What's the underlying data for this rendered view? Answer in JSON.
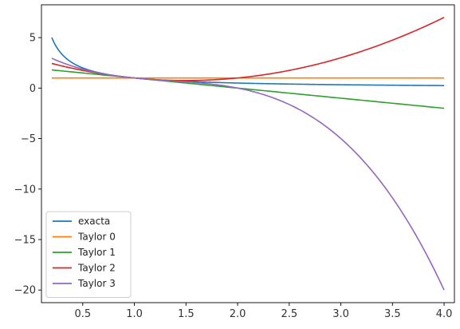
{
  "chart_data": {
    "type": "line",
    "title": "",
    "xlabel": "",
    "ylabel": "",
    "xlim": [
      0.1,
      4.1
    ],
    "ylim": [
      -21.25,
      8.25
    ],
    "grid": false,
    "legend_position": "lower-left",
    "x_ticks": [
      0.5,
      1.0,
      1.5,
      2.0,
      2.5,
      3.0,
      3.5,
      4.0
    ],
    "x_tick_labels": [
      "0.5",
      "1.0",
      "1.5",
      "2.0",
      "2.5",
      "3.0",
      "3.5",
      "4.0"
    ],
    "y_ticks": [
      5,
      0,
      -5,
      -10,
      -15,
      -20
    ],
    "y_tick_labels": [
      "5",
      "0",
      "−5",
      "−10",
      "−15",
      "−20"
    ],
    "x_range": [
      0.2,
      4.0
    ],
    "series": [
      {
        "name": "exacta",
        "color": "#1f77b4",
        "function": "1/x",
        "x": [
          0.2,
          0.3,
          0.5,
          0.75,
          1.0,
          1.5,
          2.0,
          2.5,
          3.0,
          3.5,
          4.0
        ],
        "y": [
          5.0,
          3.33,
          2.0,
          1.33,
          1.0,
          0.67,
          0.5,
          0.4,
          0.33,
          0.29,
          0.25
        ]
      },
      {
        "name": "Taylor 0",
        "color": "#ff7f0e",
        "function": "1",
        "x": [
          0.2,
          4.0
        ],
        "y": [
          1.0,
          1.0
        ]
      },
      {
        "name": "Taylor 1",
        "color": "#2ca02c",
        "function": "1-(x-1)",
        "x": [
          0.2,
          1.0,
          2.0,
          3.0,
          4.0
        ],
        "y": [
          1.8,
          1.0,
          0.0,
          -1.0,
          -2.0
        ]
      },
      {
        "name": "Taylor 2",
        "color": "#d62728",
        "function": "1-(x-1)+(x-1)^2",
        "x": [
          0.2,
          0.5,
          1.0,
          1.5,
          2.0,
          2.5,
          3.0,
          3.5,
          4.0
        ],
        "y": [
          2.44,
          1.75,
          1.0,
          0.75,
          1.0,
          1.75,
          3.0,
          4.75,
          7.0
        ]
      },
      {
        "name": "Taylor 3",
        "color": "#9467bd",
        "function": "1-(x-1)+(x-1)^2-(x-1)^3",
        "x": [
          0.2,
          0.5,
          1.0,
          1.5,
          2.0,
          2.5,
          3.0,
          3.5,
          4.0
        ],
        "y": [
          2.95,
          1.875,
          1.0,
          0.625,
          0.0,
          -1.625,
          -5.0,
          -10.875,
          -20.0
        ]
      }
    ]
  }
}
